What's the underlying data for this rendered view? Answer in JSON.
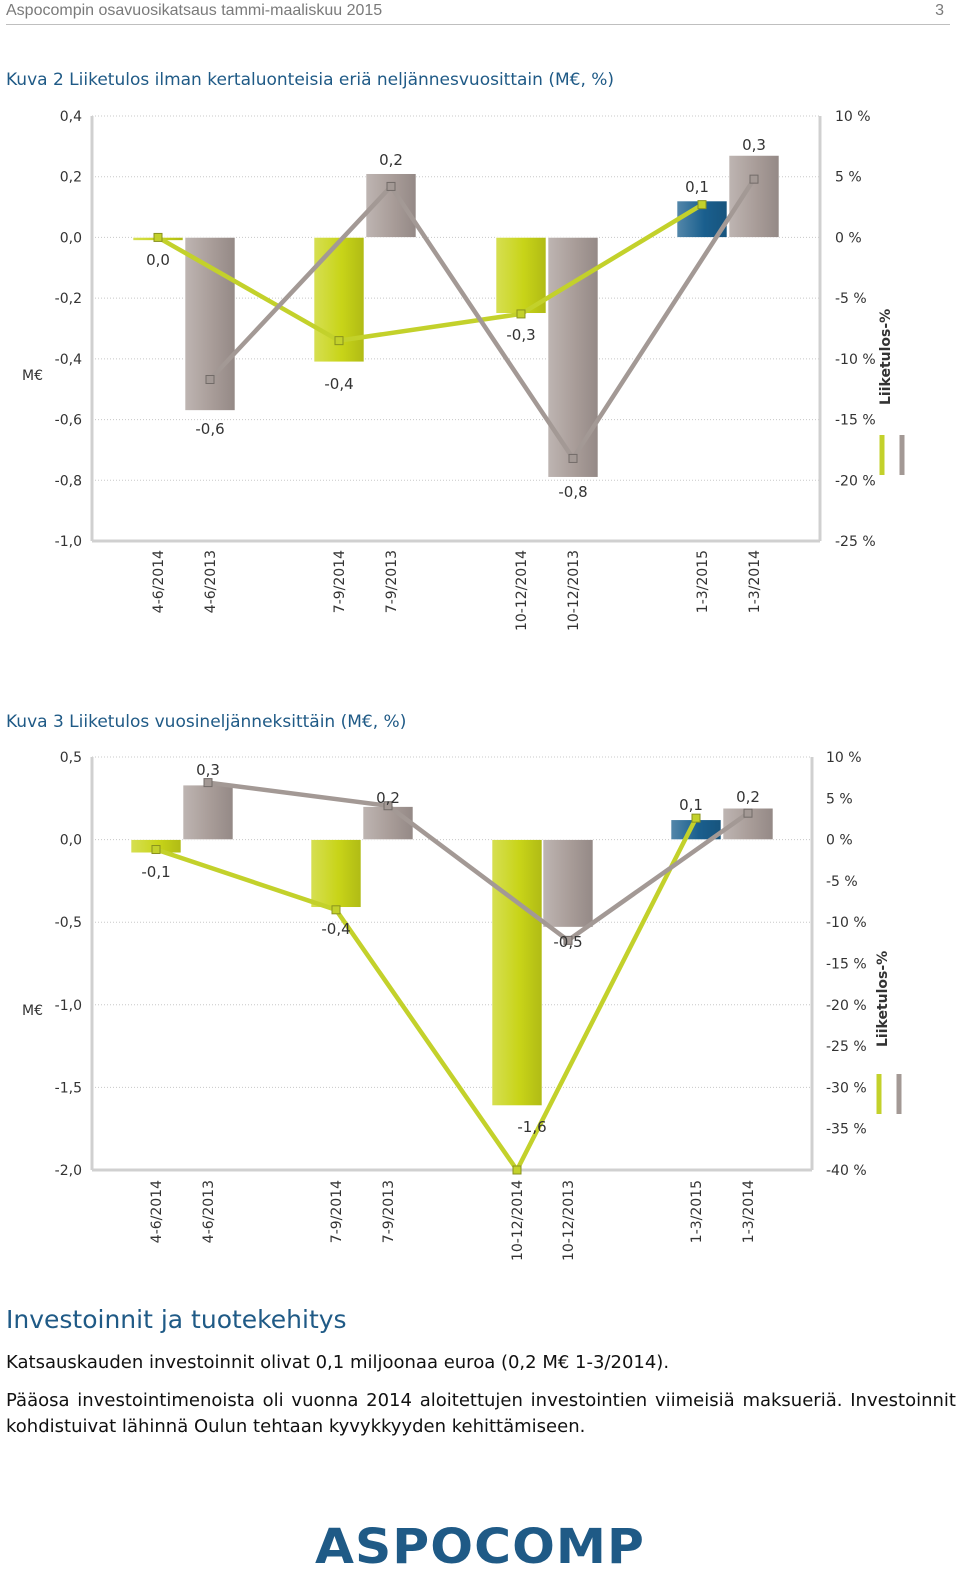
{
  "header": {
    "doc_title": "Aspocompin osavuosikatsaus tammi-maaliskuu 2015",
    "page_number": "3"
  },
  "figure2": {
    "caption": "Kuva 2 Liiketulos ilman kertaluonteisia eriä neljännesvuosittain (M€, %)"
  },
  "figure3": {
    "caption": "Kuva 3 Liiketulos vuosineljänneksittäin (M€, %)"
  },
  "section": {
    "heading": "Investoinnit ja tuotekehitys",
    "paragraph1": "Katsauskauden investoinnit olivat 0,1 miljoonaa euroa (0,2 M€ 1-3/2014).",
    "paragraph2": "Pääosa investointimenoista oli vuonna 2014 aloitettujen investointien viimeisiä maksueriä. Investoinnit kohdistuivat lähinnä Oulun tehtaan kyvykkyyden kehittämiseen."
  },
  "logo": {
    "text": "ASPOCOMP"
  },
  "colors": {
    "current_bar": "#c8d418",
    "previous_bar": "#a89c98",
    "latest_bar": "#1a5f8e",
    "current_line": "#c3d12b",
    "previous_line": "#a39995",
    "brand": "#1f5a86"
  },
  "chart_data": [
    {
      "type": "bar",
      "title": "Kuva 2 Liiketulos ilman kertaluonteisia eriä neljännesvuosittain (M€, %)",
      "ylabel": "M€",
      "y2label": "Liiketulos-%",
      "ylim": [
        -1.0,
        0.4
      ],
      "y2lim": [
        -25,
        10
      ],
      "yticks": [
        "0,4",
        "0,2",
        "0,0",
        "-0,2",
        "-0,4",
        "-0,6",
        "-0,8",
        "-1,0"
      ],
      "y2ticks": [
        "10 %",
        "5 %",
        "0 %",
        "-5 %",
        "-10 %",
        "-15 %",
        "-20 %",
        "-25 %"
      ],
      "categories": [
        "4-6/2014",
        "4-6/2013",
        "7-9/2014",
        "7-9/2013",
        "10-12/2014",
        "10-12/2013",
        "1-3/2015",
        "1-3/2014"
      ],
      "bar_values": [
        -0.01,
        -0.57,
        -0.41,
        0.21,
        -0.25,
        -0.79,
        0.12,
        0.27
      ],
      "bar_labels": [
        "0,0",
        "-0,6",
        "-0,4",
        "0,2",
        "-0,3",
        "-0,8",
        "0,1",
        "0,3"
      ],
      "bar_series": [
        "current",
        "previous",
        "current",
        "previous",
        "current",
        "previous",
        "latest",
        "previous"
      ],
      "lines": [
        {
          "series": "current",
          "x_categories": [
            "4-6/2014",
            "7-9/2014",
            "10-12/2014",
            "1-3/2015"
          ],
          "values": [
            0,
            -8.5,
            -6.3,
            2.7
          ]
        },
        {
          "series": "previous",
          "x_categories": [
            "4-6/2013",
            "7-9/2013",
            "10-12/2013",
            "1-3/2014"
          ],
          "values": [
            -11.7,
            4.2,
            -18.2,
            4.8
          ]
        }
      ]
    },
    {
      "type": "bar",
      "title": "Kuva 3 Liiketulos vuosineljänneksittäin (M€, %)",
      "ylabel": "M€",
      "y2label": "Liiketulos-%",
      "ylim": [
        -2.0,
        0.5
      ],
      "y2lim": [
        -40,
        10
      ],
      "yticks": [
        "0,5",
        "0,0",
        "-0,5",
        "-1,0",
        "-1,5",
        "-2,0"
      ],
      "y2ticks": [
        "10 %",
        "5 %",
        "0 %",
        "-5 %",
        "-10 %",
        "-15 %",
        "-20 %",
        "-25 %",
        "-30 %",
        "-35 %",
        "-40 %"
      ],
      "categories": [
        "4-6/2014",
        "4-6/2013",
        "7-9/2014",
        "7-9/2013",
        "10-12/2014",
        "10-12/2013",
        "1-3/2015",
        "1-3/2014"
      ],
      "bar_values": [
        -0.08,
        0.33,
        -0.41,
        0.2,
        -1.61,
        -0.53,
        0.12,
        0.19
      ],
      "bar_labels": [
        "-0,1",
        "0,3",
        "-0,4",
        "0,2",
        "-1,6",
        "-0,5",
        "0,1",
        "0,2"
      ],
      "bar_series": [
        "current",
        "previous",
        "current",
        "previous",
        "current",
        "previous",
        "latest",
        "previous"
      ],
      "lines": [
        {
          "series": "current",
          "x_categories": [
            "4-6/2014",
            "7-9/2014",
            "10-12/2014",
            "1-3/2015"
          ],
          "values": [
            -1.2,
            -8.5,
            -40,
            2.6
          ]
        },
        {
          "series": "previous",
          "x_categories": [
            "4-6/2013",
            "7-9/2013",
            "10-12/2013",
            "1-3/2014"
          ],
          "values": [
            6.9,
            4.1,
            -12.2,
            3.2
          ]
        }
      ]
    }
  ]
}
